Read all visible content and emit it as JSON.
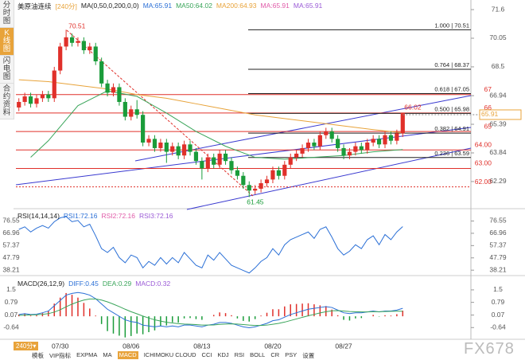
{
  "sidebar": {
    "tabs": [
      "分时图",
      "K线图",
      "闪电图",
      "合约资料"
    ],
    "active": 1
  },
  "toolbar": {
    "period": "240分▾",
    "tabs": [
      "模板",
      "VIP指标",
      "EXPMA",
      "MA",
      "MACD",
      "ICHIMOKU CLOUD",
      "CCI",
      "KDJ",
      "RSI",
      "BOLL",
      "CR",
      "PSY",
      "设置"
    ],
    "active": 4
  },
  "watermark": "FX678",
  "chart_data": [
    {
      "type": "candlestick",
      "header": [
        {
          "text": "美原油连续",
          "color": "#222"
        },
        {
          "text": "[240分]",
          "color": "#e8a33a"
        },
        {
          "text": "MA(0,50,0,200,0,0)",
          "color": "#222"
        },
        {
          "text": "MA:65.91",
          "color": "#2a6fd6"
        },
        {
          "text": "MA50:64.02",
          "color": "#3aa55a"
        },
        {
          "text": "MA200:64.93",
          "color": "#e8a33a"
        },
        {
          "text": "MA:65.91",
          "color": "#e05aa8"
        },
        {
          "text": "MA:65.91",
          "color": "#9a5ad6"
        }
      ],
      "categories": [
        null,
        null,
        null,
        null,
        null,
        null,
        null,
        "07/30",
        null,
        null,
        null,
        null,
        null,
        null,
        null,
        null,
        null,
        null,
        null,
        "08/06",
        null,
        null,
        null,
        null,
        null,
        null,
        null,
        null,
        null,
        null,
        null,
        "08/13",
        null,
        null,
        null,
        null,
        null,
        null,
        null,
        null,
        null,
        null,
        null,
        "08/20",
        null,
        null,
        null,
        null,
        null,
        null,
        null,
        null,
        null,
        null,
        null,
        "08/27",
        null,
        null,
        null,
        null,
        null,
        null,
        null,
        null,
        null,
        null
      ],
      "open": [
        66.3,
        66.6,
        66.9,
        66.5,
        66.8,
        67.0,
        66.8,
        68.3,
        69.6,
        70.1,
        69.8,
        69.9,
        69.4,
        69.6,
        68.8,
        67.6,
        67.1,
        67.4,
        66.6,
        65.8,
        66.2,
        65.9,
        64.4,
        64.6,
        64.1,
        64.4,
        63.9,
        64.2,
        63.7,
        64.3,
        63.9,
        63.4,
        63.0,
        63.6,
        63.2,
        63.8,
        63.4,
        62.9,
        62.6,
        62.1,
        61.8,
        61.9,
        62.2,
        62.4,
        62.9,
        62.6,
        63.2,
        63.6,
        63.8,
        64.1,
        64.4,
        64.2,
        64.8,
        65.0,
        64.6,
        64.1,
        63.7,
        63.9,
        64.2,
        64.0,
        64.4,
        64.6,
        64.3,
        64.8,
        64.5,
        64.9
      ],
      "high": [
        66.8,
        67.1,
        67.1,
        67.0,
        67.2,
        67.2,
        68.5,
        69.8,
        70.51,
        70.3,
        70.1,
        70.1,
        69.8,
        69.8,
        69.0,
        67.8,
        67.6,
        67.6,
        66.8,
        66.4,
        66.7,
        66.1,
        64.8,
        64.8,
        64.6,
        64.6,
        64.4,
        64.4,
        64.5,
        64.5,
        64.1,
        63.6,
        63.8,
        63.8,
        64.0,
        64.0,
        63.6,
        63.1,
        62.8,
        62.3,
        62.1,
        62.4,
        62.6,
        63.1,
        63.1,
        63.4,
        63.8,
        64.0,
        64.3,
        64.6,
        64.6,
        65.0,
        65.2,
        65.2,
        64.8,
        64.3,
        64.1,
        64.4,
        64.4,
        64.6,
        64.8,
        64.8,
        65.0,
        65.0,
        65.1,
        66.02
      ],
      "low": [
        66.1,
        66.4,
        66.3,
        66.3,
        66.6,
        66.6,
        66.6,
        68.1,
        69.4,
        69.6,
        69.6,
        69.2,
        69.2,
        68.6,
        67.4,
        66.9,
        66.9,
        66.4,
        65.6,
        65.6,
        65.7,
        64.2,
        64.2,
        63.9,
        63.9,
        63.3,
        63.7,
        63.5,
        63.5,
        63.7,
        63.2,
        62.4,
        62.8,
        63.0,
        63.0,
        63.2,
        62.7,
        62.4,
        61.9,
        61.45,
        61.6,
        61.7,
        62.0,
        62.2,
        62.4,
        62.4,
        63.0,
        63.4,
        63.6,
        63.9,
        64.0,
        64.0,
        64.6,
        64.4,
        63.9,
        63.5,
        63.5,
        63.7,
        63.8,
        63.8,
        64.2,
        64.1,
        64.1,
        64.3,
        64.3,
        64.7
      ],
      "close": [
        66.6,
        66.9,
        66.5,
        66.8,
        67.0,
        66.8,
        68.3,
        69.6,
        70.1,
        69.8,
        69.9,
        69.4,
        69.6,
        68.8,
        67.6,
        67.1,
        67.4,
        66.6,
        65.8,
        66.2,
        65.9,
        64.4,
        64.6,
        64.1,
        64.4,
        63.9,
        64.2,
        63.7,
        64.3,
        63.9,
        63.4,
        63.0,
        63.6,
        63.2,
        63.8,
        63.4,
        62.9,
        62.6,
        62.1,
        61.8,
        61.9,
        62.2,
        62.4,
        62.9,
        62.6,
        63.2,
        63.6,
        63.8,
        64.1,
        64.4,
        64.2,
        64.8,
        65.0,
        64.6,
        64.1,
        63.7,
        63.9,
        64.2,
        64.0,
        64.4,
        64.6,
        64.3,
        64.8,
        64.5,
        64.9,
        66.0
      ],
      "up_color": "#e0302a",
      "down_color": "#1a9c3a",
      "ma_lines": [
        {
          "color": "#e8a33a",
          "x": [
            0,
            5,
            10,
            15,
            20,
            25,
            30,
            35,
            40,
            45,
            50,
            55,
            60,
            65
          ],
          "values": [
            67.8,
            67.7,
            67.5,
            67.3,
            67.0,
            66.8,
            66.5,
            66.2,
            65.9,
            65.7,
            65.5,
            65.3,
            65.1,
            64.93
          ]
        },
        {
          "color": "#3aa55a",
          "x": [
            2,
            5,
            10,
            15,
            20,
            25,
            30,
            35,
            40,
            45,
            50,
            55,
            60,
            65
          ],
          "values": [
            63.6,
            64.5,
            66.4,
            67.2,
            66.9,
            66.0,
            65.0,
            64.2,
            63.6,
            63.5,
            63.6,
            63.7,
            63.9,
            64.02
          ]
        }
      ],
      "fib_levels": [
        {
          "value": 70.51,
          "label": "1.000 | 70.51"
        },
        {
          "value": 68.37,
          "label": "0.764 | 68.37"
        },
        {
          "value": 67.05,
          "label": "0.618 | 67.05"
        },
        {
          "value": 65.98,
          "label": "0.500 | 65.98"
        },
        {
          "value": 64.91,
          "label": "0.382 | 64.91"
        },
        {
          "value": 63.59,
          "label": "0.236 | 63.59"
        }
      ],
      "price_levels": [
        67,
        66,
        65,
        {
          "value": 64,
          "label": "64.00"
        },
        {
          "value": 63,
          "label": "63.00"
        },
        {
          "value": 62,
          "label": "62.00"
        }
      ],
      "last_price": 65.91,
      "ylim": [
        60.82,
        72.12
      ],
      "yticks": [
        71.6,
        70.05,
        68.5,
        66.94,
        65.39,
        63.84,
        62.29
      ]
    },
    {
      "type": "line",
      "header": [
        {
          "text": "RSI(14,14,14)",
          "color": "#222"
        },
        {
          "text": "RSI1:72.16",
          "color": "#2a6fd6"
        },
        {
          "text": "RSI2:72.16",
          "color": "#e05aa8"
        },
        {
          "text": "RSI3:72.16",
          "color": "#9a5ad6"
        }
      ],
      "series": [
        {
          "color": "#2a6fd6",
          "values": [
            70,
            72,
            68,
            71,
            73,
            71,
            76,
            79,
            80,
            76,
            77,
            72,
            74,
            65,
            55,
            52,
            56,
            48,
            44,
            50,
            48,
            40,
            45,
            42,
            48,
            43,
            48,
            44,
            52,
            47,
            42,
            40,
            50,
            46,
            52,
            47,
            42,
            40,
            38,
            36,
            40,
            45,
            48,
            55,
            50,
            58,
            62,
            64,
            66,
            68,
            63,
            70,
            72,
            64,
            55,
            50,
            53,
            58,
            55,
            62,
            65,
            58,
            66,
            62,
            68,
            72.16
          ]
        }
      ],
      "ylim": [
        34.6,
        84.3
      ],
      "yticks": [
        76.55,
        66.96,
        57.37,
        47.79,
        38.21
      ]
    },
    {
      "type": "macd",
      "header": [
        {
          "text": "MACD(26,12,9)",
          "color": "#222"
        },
        {
          "text": "DIFF:0.45",
          "color": "#2a6fd6"
        },
        {
          "text": "DEA:0.29",
          "color": "#3aa55a"
        },
        {
          "text": "MACD:0.32",
          "color": "#9a5ad6"
        }
      ],
      "series": [
        {
          "color": "#2a6fd6",
          "values": [
            0.1,
            0.15,
            0.1,
            0.12,
            0.2,
            0.3,
            0.6,
            0.9,
            1.2,
            1.3,
            1.35,
            1.3,
            1.2,
            1.0,
            0.7,
            0.4,
            0.2,
            0.0,
            -0.2,
            -0.3,
            -0.35,
            -0.5,
            -0.55,
            -0.6,
            -0.55,
            -0.6,
            -0.55,
            -0.6,
            -0.5,
            -0.5,
            -0.55,
            -0.6,
            -0.5,
            -0.45,
            -0.35,
            -0.35,
            -0.4,
            -0.5,
            -0.6,
            -0.65,
            -0.6,
            -0.5,
            -0.4,
            -0.25,
            -0.2,
            -0.05,
            0.1,
            0.2,
            0.3,
            0.4,
            0.45,
            0.5,
            0.55,
            0.5,
            0.35,
            0.2,
            0.15,
            0.2,
            0.2,
            0.25,
            0.3,
            0.25,
            0.3,
            0.3,
            0.35,
            0.45
          ]
        },
        {
          "color": "#3aa55a",
          "values": [
            0.05,
            0.07,
            0.08,
            0.09,
            0.11,
            0.15,
            0.24,
            0.37,
            0.54,
            0.69,
            0.82,
            0.92,
            0.98,
            0.98,
            0.92,
            0.82,
            0.69,
            0.55,
            0.4,
            0.26,
            0.14,
            0.01,
            -0.1,
            -0.2,
            -0.27,
            -0.34,
            -0.38,
            -0.42,
            -0.44,
            -0.45,
            -0.47,
            -0.5,
            -0.5,
            -0.49,
            -0.46,
            -0.44,
            -0.43,
            -0.44,
            -0.47,
            -0.5,
            -0.52,
            -0.52,
            -0.5,
            -0.45,
            -0.4,
            -0.33,
            -0.24,
            -0.15,
            -0.06,
            0.03,
            0.11,
            0.19,
            0.26,
            0.31,
            0.32,
            0.3,
            0.27,
            0.26,
            0.25,
            0.25,
            0.26,
            0.26,
            0.27,
            0.28,
            0.29,
            0.29
          ]
        }
      ],
      "histogram": [
        0.1,
        0.16,
        0.04,
        0.06,
        0.18,
        0.3,
        0.72,
        1.06,
        1.32,
        1.22,
        1.06,
        0.76,
        0.44,
        0.04,
        -0.44,
        -0.84,
        -0.98,
        -1.1,
        -1.2,
        -1.12,
        -0.98,
        -1.02,
        -0.9,
        -0.8,
        -0.56,
        -0.52,
        -0.34,
        -0.36,
        -0.12,
        -0.1,
        -0.16,
        -0.2,
        0,
        0.08,
        0.22,
        0.18,
        0.06,
        -0.12,
        -0.26,
        -0.3,
        -0.16,
        0.04,
        0.2,
        0.4,
        0.4,
        0.56,
        0.68,
        0.7,
        0.72,
        0.74,
        0.68,
        0.62,
        0.58,
        0.38,
        0.06,
        -0.2,
        -0.24,
        -0.12,
        -0.1,
        0,
        0.08,
        -0.02,
        0.06,
        0.04,
        0.12,
        0.32
      ],
      "up_color": "#e0302a",
      "down_color": "#1a9c3a",
      "ylim": [
        -1.26,
        2.22
      ],
      "yticks": [
        1.5,
        0.79,
        0.07,
        -0.64
      ]
    }
  ]
}
